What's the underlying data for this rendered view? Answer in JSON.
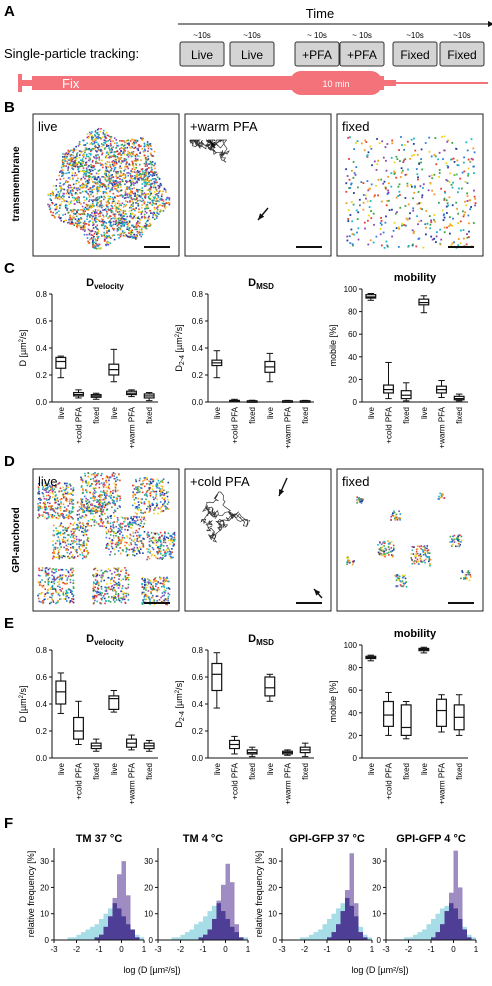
{
  "panels": {
    "A": {
      "label": "A",
      "time_label": "Time",
      "tracking_label": "Single-particle tracking:",
      "steps": [
        {
          "duration": "~10s",
          "label": "Live"
        },
        {
          "duration": "~10s",
          "label": "Live"
        },
        {
          "duration": "~ 10s",
          "label": "+PFA"
        },
        {
          "duration": "~ 10s",
          "label": "+PFA"
        },
        {
          "duration": "~10s",
          "label": "Fixed"
        },
        {
          "duration": "~10s",
          "label": "Fixed"
        }
      ],
      "fix_label": "Fix",
      "fix_duration": "10 min",
      "colors": {
        "syringe": "#f4727a",
        "box": "#d4d4d4"
      }
    },
    "B": {
      "label": "B",
      "row_label": "transmembrane",
      "images": [
        "live",
        "+warm PFA",
        "fixed"
      ]
    },
    "D": {
      "label": "D",
      "row_label": "GPI-anchored",
      "images": [
        "live",
        "+cold PFA",
        "fixed"
      ]
    },
    "C": {
      "label": "C"
    },
    "E": {
      "label": "E"
    },
    "F": {
      "label": "F"
    }
  },
  "chart_data": [
    {
      "id": "C-dvelocity",
      "type": "box",
      "title_main": "D",
      "title_sub": "velocity",
      "ylabel_main": "D [µm",
      "ylabel_sup": "2",
      "ylabel_end": "/s]",
      "ylim": [
        0,
        0.8
      ],
      "yticks": [
        "0.0",
        "0.2",
        "0.4",
        "0.6",
        "0.8"
      ],
      "categories": [
        "live",
        "+cold PFA",
        "fixed",
        "live",
        "+warm PFA",
        "fixed"
      ],
      "boxes": [
        {
          "min": 0.18,
          "q1": 0.25,
          "median": 0.3,
          "q3": 0.33,
          "max": 0.34
        },
        {
          "min": 0.03,
          "q1": 0.045,
          "median": 0.055,
          "q3": 0.07,
          "max": 0.09
        },
        {
          "min": 0.02,
          "q1": 0.035,
          "median": 0.045,
          "q3": 0.055,
          "max": 0.065
        },
        {
          "min": 0.15,
          "q1": 0.2,
          "median": 0.24,
          "q3": 0.28,
          "max": 0.39
        },
        {
          "min": 0.04,
          "q1": 0.055,
          "median": 0.065,
          "q3": 0.08,
          "max": 0.09
        },
        {
          "min": 0.01,
          "q1": 0.03,
          "median": 0.045,
          "q3": 0.06,
          "max": 0.07
        }
      ]
    },
    {
      "id": "C-dmsd",
      "type": "box",
      "title_main": "D",
      "title_sub": "MSD",
      "ylabel_main": "D",
      "ylabel_sub": "2-4",
      "ylabel_end": " [µm",
      "ylabel_sup": "2",
      "ylabel_end2": "/s]",
      "ylim": [
        0,
        0.8
      ],
      "yticks": [
        "0.0",
        "0.2",
        "0.4",
        "0.6",
        "0.8"
      ],
      "categories": [
        "live",
        "+cold PFA",
        "fixed",
        "live",
        "+warm PFA",
        "fixed"
      ],
      "boxes": [
        {
          "min": 0.18,
          "q1": 0.27,
          "median": 0.29,
          "q3": 0.31,
          "max": 0.38
        },
        {
          "min": 0.0,
          "q1": 0.005,
          "median": 0.008,
          "q3": 0.012,
          "max": 0.02
        },
        {
          "min": 0.0,
          "q1": 0.004,
          "median": 0.006,
          "q3": 0.009,
          "max": 0.013
        },
        {
          "min": 0.15,
          "q1": 0.22,
          "median": 0.26,
          "q3": 0.3,
          "max": 0.36
        },
        {
          "min": 0.0,
          "q1": 0.004,
          "median": 0.006,
          "q3": 0.009,
          "max": 0.012
        },
        {
          "min": 0.0,
          "q1": 0.004,
          "median": 0.006,
          "q3": 0.009,
          "max": 0.012
        }
      ]
    },
    {
      "id": "C-mobility",
      "type": "box",
      "title_main": "mobility",
      "title_sub": "",
      "ylabel_main": "mobile [%]",
      "ylim": [
        0,
        100
      ],
      "yticks": [
        "0",
        "20",
        "40",
        "60",
        "80",
        "100"
      ],
      "categories": [
        "live",
        "+cold PFA",
        "fixed",
        "live",
        "+warm PFA",
        "fixed"
      ],
      "boxes": [
        {
          "min": 90,
          "q1": 92,
          "median": 93,
          "q3": 95,
          "max": 96
        },
        {
          "min": 3,
          "q1": 8,
          "median": 11,
          "q3": 15,
          "max": 35
        },
        {
          "min": 1,
          "q1": 3,
          "median": 6,
          "q3": 10,
          "max": 17
        },
        {
          "min": 79,
          "q1": 86,
          "median": 88,
          "q3": 91,
          "max": 94
        },
        {
          "min": 4,
          "q1": 8,
          "median": 11,
          "q3": 14,
          "max": 19
        },
        {
          "min": 1,
          "q1": 2,
          "median": 3,
          "q3": 5,
          "max": 7
        }
      ]
    },
    {
      "id": "E-dvelocity",
      "type": "box",
      "title_main": "D",
      "title_sub": "velocity",
      "ylabel_main": "D [µm",
      "ylabel_sup": "2",
      "ylabel_end": "/s]",
      "ylim": [
        0,
        0.8
      ],
      "yticks": [
        "0.0",
        "0.2",
        "0.4",
        "0.6",
        "0.8"
      ],
      "categories": [
        "live",
        "+cold PFA",
        "fixed",
        "live",
        "+warm PFA",
        "fixed"
      ],
      "boxes": [
        {
          "min": 0.33,
          "q1": 0.4,
          "median": 0.49,
          "q3": 0.57,
          "max": 0.63
        },
        {
          "min": 0.1,
          "q1": 0.14,
          "median": 0.2,
          "q3": 0.3,
          "max": 0.42
        },
        {
          "min": 0.05,
          "q1": 0.07,
          "median": 0.09,
          "q3": 0.11,
          "max": 0.14
        },
        {
          "min": 0.34,
          "q1": 0.36,
          "median": 0.44,
          "q3": 0.46,
          "max": 0.5
        },
        {
          "min": 0.06,
          "q1": 0.08,
          "median": 0.11,
          "q3": 0.14,
          "max": 0.17
        },
        {
          "min": 0.05,
          "q1": 0.07,
          "median": 0.09,
          "q3": 0.11,
          "max": 0.13
        }
      ]
    },
    {
      "id": "E-dmsd",
      "type": "box",
      "title_main": "D",
      "title_sub": "MSD",
      "ylabel_main": "D",
      "ylabel_sub": "2-4",
      "ylabel_end": " [µm",
      "ylabel_sup": "2",
      "ylabel_end2": "/s]",
      "ylim": [
        0,
        0.8
      ],
      "yticks": [
        "0.0",
        "0.2",
        "0.4",
        "0.6",
        "0.8"
      ],
      "categories": [
        "live",
        "+cold PFA",
        "fixed",
        "live",
        "+warm PFA",
        "fixed"
      ],
      "boxes": [
        {
          "min": 0.37,
          "q1": 0.5,
          "median": 0.62,
          "q3": 0.7,
          "max": 0.78
        },
        {
          "min": 0.03,
          "q1": 0.07,
          "median": 0.1,
          "q3": 0.13,
          "max": 0.16
        },
        {
          "min": 0.01,
          "q1": 0.03,
          "median": 0.04,
          "q3": 0.06,
          "max": 0.08
        },
        {
          "min": 0.42,
          "q1": 0.46,
          "median": 0.52,
          "q3": 0.6,
          "max": 0.62
        },
        {
          "min": 0.02,
          "q1": 0.03,
          "median": 0.04,
          "q3": 0.05,
          "max": 0.06
        },
        {
          "min": 0.01,
          "q1": 0.04,
          "median": 0.06,
          "q3": 0.08,
          "max": 0.11
        }
      ]
    },
    {
      "id": "E-mobility",
      "type": "box",
      "title_main": "mobility",
      "title_sub": "",
      "ylabel_main": "mobile [%]",
      "ylim": [
        0,
        100
      ],
      "yticks": [
        "0",
        "20",
        "40",
        "60",
        "80",
        "100"
      ],
      "categories": [
        "live",
        "+cold PFA",
        "fixed",
        "live",
        "+warm PFA",
        "fixed"
      ],
      "boxes": [
        {
          "min": 86,
          "q1": 88,
          "median": 89,
          "q3": 90,
          "max": 91
        },
        {
          "min": 20,
          "q1": 28,
          "median": 38,
          "q3": 50,
          "max": 58
        },
        {
          "min": 17,
          "q1": 20,
          "median": 27,
          "q3": 47,
          "max": 50
        },
        {
          "min": 93,
          "q1": 95,
          "median": 96,
          "q3": 97,
          "max": 98
        },
        {
          "min": 23,
          "q1": 28,
          "median": 42,
          "q3": 52,
          "max": 56
        },
        {
          "min": 20,
          "q1": 25,
          "median": 36,
          "q3": 47,
          "max": 56
        }
      ]
    },
    {
      "id": "F-hist",
      "type": "bar",
      "ylabel": "relative frequency [%]",
      "xlabel": "log (D [µm²/s])",
      "ylim": [
        0,
        35
      ],
      "yticks": [
        "0",
        "10",
        "20",
        "30"
      ],
      "xlim": [
        -3,
        1
      ],
      "xticks": [
        "-3",
        "-2",
        "-1",
        "0",
        "1"
      ],
      "colors": {
        "cyan": "#a6dde6",
        "purple": "#8e78b8",
        "overlap": "#4e3e96"
      },
      "bin_start": -3,
      "bin_width": 0.2,
      "plots": [
        {
          "title": "TM 37 °C",
          "cyan": [
            0,
            0,
            0,
            1,
            1,
            2,
            3,
            4,
            5,
            6,
            8,
            10,
            12,
            14,
            12,
            9,
            6,
            4,
            2,
            1
          ],
          "purple": [
            0,
            0,
            0,
            0,
            0,
            0,
            0,
            0,
            0,
            1,
            2,
            5,
            9,
            16,
            25,
            30,
            17,
            4,
            1,
            0
          ]
        },
        {
          "title": "TM 4 °C",
          "cyan": [
            0,
            0,
            0,
            1,
            1,
            2,
            3,
            4,
            6,
            7,
            9,
            11,
            13,
            14,
            11,
            8,
            5,
            3,
            1,
            1
          ],
          "purple": [
            0,
            0,
            0,
            0,
            0,
            0,
            0,
            0,
            0,
            1,
            2,
            4,
            8,
            15,
            21,
            29,
            22,
            6,
            1,
            0
          ]
        },
        {
          "title": "GPI-GFP 37 °C",
          "cyan": [
            0,
            0,
            0,
            0,
            1,
            1,
            2,
            3,
            4,
            6,
            8,
            10,
            12,
            14,
            16,
            13,
            9,
            5,
            2,
            1
          ],
          "purple": [
            0,
            0,
            0,
            0,
            0,
            0,
            0,
            0,
            0,
            0,
            1,
            3,
            6,
            11,
            19,
            33,
            14,
            3,
            1,
            0
          ]
        },
        {
          "title": "GPI-GFP 4 °C",
          "cyan": [
            0,
            0,
            0,
            0,
            1,
            1,
            2,
            3,
            4,
            6,
            8,
            10,
            12,
            13,
            14,
            12,
            8,
            5,
            2,
            1
          ],
          "purple": [
            0,
            0,
            0,
            0,
            0,
            0,
            0,
            0,
            0,
            0,
            1,
            3,
            6,
            11,
            18,
            34,
            20,
            4,
            1,
            0
          ]
        }
      ]
    }
  ]
}
